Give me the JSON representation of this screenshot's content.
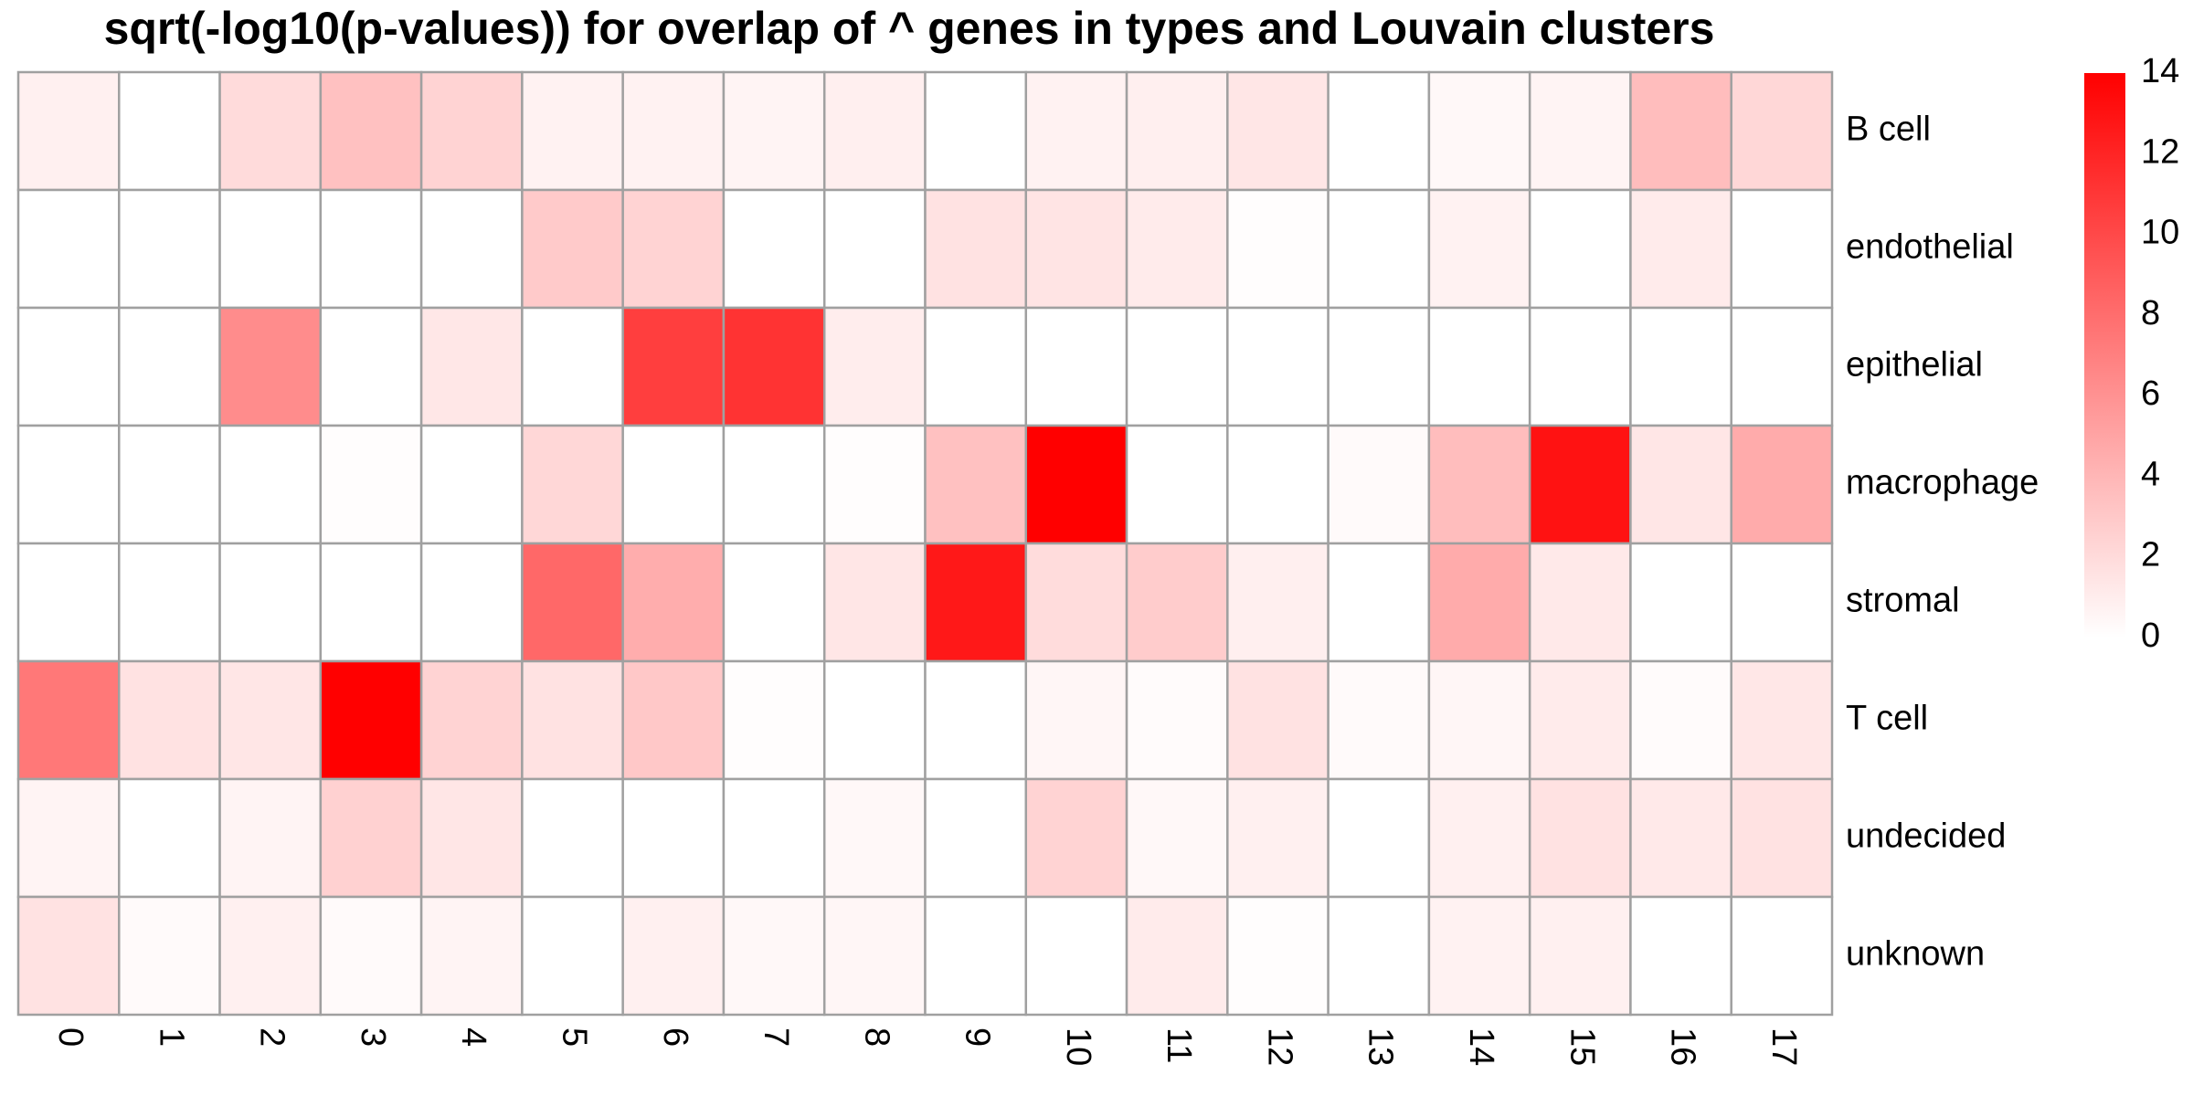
{
  "chart_data": {
    "type": "heatmap",
    "title": "sqrt(-log10(p-values)) for overlap of ^ genes in types and Louvain clusters",
    "x_categories": [
      "0",
      "1",
      "2",
      "3",
      "4",
      "5",
      "6",
      "7",
      "8",
      "9",
      "10",
      "11",
      "12",
      "13",
      "14",
      "15",
      "16",
      "17"
    ],
    "y_categories": [
      "B cell",
      "endothelial",
      "epithelial",
      "macrophage",
      "stromal",
      "T cell",
      "undecided",
      "unknown"
    ],
    "values": [
      [
        0.8,
        0.0,
        2.0,
        3.4,
        2.4,
        0.7,
        0.7,
        0.6,
        0.9,
        0.0,
        0.7,
        0.9,
        1.4,
        0.0,
        0.4,
        0.6,
        3.6,
        2.2
      ],
      [
        0.0,
        0.0,
        0.0,
        0.0,
        0.0,
        2.9,
        2.4,
        0.0,
        0.0,
        1.6,
        1.5,
        1.1,
        0.1,
        0.0,
        0.7,
        0.0,
        1.1,
        0.0
      ],
      [
        0.0,
        0.0,
        6.3,
        0.0,
        1.3,
        0.0,
        10.6,
        11.2,
        1.0,
        0.0,
        0.0,
        0.0,
        0.0,
        0.0,
        0.0,
        0.0,
        0.0,
        0.0
      ],
      [
        0.0,
        0.0,
        0.0,
        0.1,
        0.0,
        2.2,
        0.0,
        0.0,
        0.1,
        3.4,
        14.3,
        0.0,
        0.0,
        0.3,
        3.6,
        13.0,
        1.4,
        4.6
      ],
      [
        0.0,
        0.0,
        0.0,
        0.0,
        0.0,
        8.3,
        4.5,
        0.0,
        1.4,
        12.7,
        1.9,
        2.8,
        0.9,
        0.0,
        4.6,
        1.2,
        0.0,
        0.0
      ],
      [
        7.4,
        1.6,
        1.4,
        14.4,
        2.4,
        1.6,
        3.0,
        0.1,
        0.0,
        0.0,
        0.5,
        0.2,
        1.6,
        0.3,
        0.5,
        1.1,
        0.2,
        1.3
      ],
      [
        0.6,
        0.0,
        0.6,
        2.5,
        1.4,
        0.0,
        0.0,
        0.0,
        0.4,
        0.0,
        2.4,
        0.4,
        0.8,
        0.0,
        0.8,
        1.6,
        1.2,
        1.6
      ],
      [
        1.6,
        0.3,
        0.8,
        0.3,
        0.6,
        0.0,
        0.8,
        0.4,
        0.5,
        0.0,
        0.0,
        1.1,
        0.1,
        0.0,
        0.7,
        0.8,
        0.0,
        0.0
      ]
    ],
    "colorbar": {
      "min": 0,
      "max": 14,
      "ticks": [
        0,
        2,
        4,
        6,
        8,
        10,
        12,
        14
      ],
      "low_color": "#ffffff",
      "high_color": "#ff0000"
    },
    "grid_color": "#a0a0a0",
    "x_tick_rotation": "90deg clockwise",
    "legend_position": "right"
  }
}
